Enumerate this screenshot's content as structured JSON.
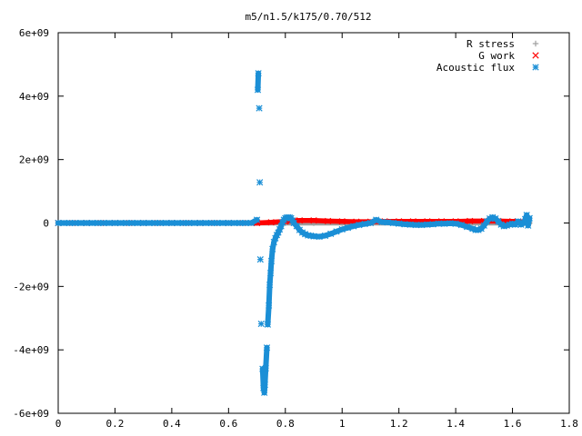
{
  "chart_data": {
    "type": "scatter",
    "title": "m5/n1.5/k175/0.70/512",
    "xlabel": "",
    "ylabel": "",
    "xlim": [
      0,
      1.8
    ],
    "ylim": [
      -6000000000.0,
      6000000000.0
    ],
    "x_ticks": [
      {
        "value": 0,
        "label": "0"
      },
      {
        "value": 0.2,
        "label": "0.2"
      },
      {
        "value": 0.4,
        "label": "0.4"
      },
      {
        "value": 0.6,
        "label": "0.6"
      },
      {
        "value": 0.8,
        "label": "0.8"
      },
      {
        "value": 1.0,
        "label": "1"
      },
      {
        "value": 1.2,
        "label": "1.2"
      },
      {
        "value": 1.4,
        "label": "1.4"
      },
      {
        "value": 1.6,
        "label": "1.6"
      },
      {
        "value": 1.8,
        "label": "1.8"
      }
    ],
    "y_ticks": [
      {
        "value": 6000000000.0,
        "label": "6e+09"
      },
      {
        "value": 4000000000.0,
        "label": "4e+09"
      },
      {
        "value": 2000000000.0,
        "label": "2e+09"
      },
      {
        "value": 0,
        "label": "0"
      },
      {
        "value": -2000000000.0,
        "label": "-2e+09"
      },
      {
        "value": -4000000000.0,
        "label": "-4e+09"
      },
      {
        "value": -6000000000.0,
        "label": "-6e+09"
      }
    ],
    "grid": false,
    "legend_position": "top-right",
    "series": [
      {
        "name": "R stress",
        "marker": "plus",
        "color": "#9e9e9e",
        "points": [
          [
            0.0,
            0
          ],
          [
            0.1,
            0
          ],
          [
            0.2,
            0
          ],
          [
            0.3,
            0
          ],
          [
            0.4,
            0
          ],
          [
            0.5,
            0
          ],
          [
            0.6,
            0
          ],
          [
            0.7,
            0
          ],
          [
            0.8,
            0
          ],
          [
            0.9,
            0
          ],
          [
            1.0,
            0
          ],
          [
            1.1,
            0
          ],
          [
            1.2,
            0
          ],
          [
            1.3,
            0
          ],
          [
            1.4,
            0
          ],
          [
            1.5,
            0
          ],
          [
            1.6,
            0
          ],
          [
            1.66,
            0
          ]
        ]
      },
      {
        "name": "G work",
        "marker": "cross",
        "color": "#ff0000",
        "points": [
          [
            0.0,
            0
          ],
          [
            0.05,
            0
          ],
          [
            0.1,
            0
          ],
          [
            0.15,
            0
          ],
          [
            0.2,
            0
          ],
          [
            0.25,
            0
          ],
          [
            0.3,
            0
          ],
          [
            0.35,
            0
          ],
          [
            0.4,
            0
          ],
          [
            0.45,
            0
          ],
          [
            0.5,
            0
          ],
          [
            0.55,
            0
          ],
          [
            0.6,
            0
          ],
          [
            0.65,
            0
          ],
          [
            0.7,
            0
          ],
          [
            0.75,
            20000000.0
          ],
          [
            0.8,
            50000000.0
          ],
          [
            0.85,
            80000000.0
          ],
          [
            0.9,
            80000000.0
          ],
          [
            0.95,
            60000000.0
          ],
          [
            1.0,
            50000000.0
          ],
          [
            1.05,
            40000000.0
          ],
          [
            1.1,
            40000000.0
          ],
          [
            1.15,
            50000000.0
          ],
          [
            1.2,
            50000000.0
          ],
          [
            1.25,
            50000000.0
          ],
          [
            1.3,
            50000000.0
          ],
          [
            1.35,
            50000000.0
          ],
          [
            1.4,
            50000000.0
          ],
          [
            1.45,
            60000000.0
          ],
          [
            1.5,
            60000000.0
          ],
          [
            1.55,
            60000000.0
          ],
          [
            1.6,
            50000000.0
          ],
          [
            1.65,
            30000000.0
          ]
        ]
      },
      {
        "name": "Acoustic flux",
        "marker": "star",
        "color": "#1b8fd6",
        "points": [
          [
            0.0,
            0
          ],
          [
            0.02,
            0
          ],
          [
            0.04,
            0
          ],
          [
            0.06,
            0
          ],
          [
            0.08,
            0
          ],
          [
            0.1,
            0
          ],
          [
            0.12,
            0
          ],
          [
            0.14,
            0
          ],
          [
            0.16,
            0
          ],
          [
            0.18,
            0
          ],
          [
            0.2,
            0
          ],
          [
            0.22,
            0
          ],
          [
            0.24,
            0
          ],
          [
            0.26,
            0
          ],
          [
            0.28,
            0
          ],
          [
            0.3,
            0
          ],
          [
            0.32,
            0
          ],
          [
            0.34,
            0
          ],
          [
            0.36,
            0
          ],
          [
            0.38,
            0
          ],
          [
            0.4,
            0
          ],
          [
            0.42,
            0
          ],
          [
            0.44,
            0
          ],
          [
            0.46,
            0
          ],
          [
            0.48,
            0
          ],
          [
            0.5,
            0
          ],
          [
            0.52,
            0
          ],
          [
            0.54,
            0
          ],
          [
            0.56,
            0
          ],
          [
            0.58,
            0
          ],
          [
            0.6,
            0
          ],
          [
            0.62,
            0
          ],
          [
            0.64,
            0
          ],
          [
            0.66,
            0
          ],
          [
            0.68,
            0
          ],
          [
            0.7,
            100000000.0
          ],
          [
            0.703,
            4200000000.0
          ],
          [
            0.705,
            4720000000.0
          ],
          [
            0.708,
            3620000000.0
          ],
          [
            0.71,
            1280000000.0
          ],
          [
            0.712,
            -1150000000.0
          ],
          [
            0.715,
            -3180000000.0
          ],
          [
            0.72,
            -4600000000.0
          ],
          [
            0.723,
            -5200000000.0
          ],
          [
            0.726,
            -5350000000.0
          ],
          [
            0.728,
            -5100000000.0
          ],
          [
            0.731,
            -4580000000.0
          ],
          [
            0.735,
            -3930000000.0
          ],
          [
            0.738,
            -3200000000.0
          ],
          [
            0.742,
            -2600000000.0
          ],
          [
            0.745,
            -1950000000.0
          ],
          [
            0.748,
            -1580000000.0
          ],
          [
            0.751,
            -1200000000.0
          ],
          [
            0.755,
            -820000000.0
          ],
          [
            0.76,
            -600000000.0
          ],
          [
            0.765,
            -480000000.0
          ],
          [
            0.77,
            -380000000.0
          ],
          [
            0.775,
            -300000000.0
          ],
          [
            0.78,
            -200000000.0
          ],
          [
            0.785,
            -100000000.0
          ],
          [
            0.79,
            20000000.0
          ],
          [
            0.795,
            100000000.0
          ],
          [
            0.8,
            150000000.0
          ],
          [
            0.805,
            170000000.0
          ],
          [
            0.81,
            180000000.0
          ],
          [
            0.815,
            170000000.0
          ],
          [
            0.82,
            150000000.0
          ],
          [
            0.825,
            80000000.0
          ],
          [
            0.83,
            0.0
          ],
          [
            0.84,
            -100000000.0
          ],
          [
            0.85,
            -220000000.0
          ],
          [
            0.86,
            -300000000.0
          ],
          [
            0.87,
            -350000000.0
          ],
          [
            0.88,
            -390000000.0
          ],
          [
            0.89,
            -400000000.0
          ],
          [
            0.9,
            -420000000.0
          ],
          [
            0.92,
            -430000000.0
          ],
          [
            0.94,
            -400000000.0
          ],
          [
            0.96,
            -340000000.0
          ],
          [
            0.98,
            -270000000.0
          ],
          [
            1.0,
            -200000000.0
          ],
          [
            1.02,
            -150000000.0
          ],
          [
            1.04,
            -100000000.0
          ],
          [
            1.06,
            -60000000.0
          ],
          [
            1.08,
            -30000000.0
          ],
          [
            1.1,
            0.0
          ],
          [
            1.12,
            100000000.0
          ],
          [
            1.14,
            30000000.0
          ],
          [
            1.16,
            20000000.0
          ],
          [
            1.18,
            0.0
          ],
          [
            1.2,
            -20000000.0
          ],
          [
            1.22,
            -40000000.0
          ],
          [
            1.24,
            -50000000.0
          ],
          [
            1.26,
            -60000000.0
          ],
          [
            1.28,
            -60000000.0
          ],
          [
            1.3,
            -50000000.0
          ],
          [
            1.32,
            -40000000.0
          ],
          [
            1.34,
            -20000000.0
          ],
          [
            1.36,
            -20000000.0
          ],
          [
            1.38,
            -10000000.0
          ],
          [
            1.4,
            -20000000.0
          ],
          [
            1.42,
            -60000000.0
          ],
          [
            1.44,
            -120000000.0
          ],
          [
            1.46,
            -180000000.0
          ],
          [
            1.47,
            -220000000.0
          ],
          [
            1.48,
            -220000000.0
          ],
          [
            1.49,
            -180000000.0
          ],
          [
            1.5,
            -80000000.0
          ],
          [
            1.51,
            50000000.0
          ],
          [
            1.52,
            140000000.0
          ],
          [
            1.53,
            180000000.0
          ],
          [
            1.54,
            140000000.0
          ],
          [
            1.55,
            50000000.0
          ],
          [
            1.56,
            -50000000.0
          ],
          [
            1.57,
            -100000000.0
          ],
          [
            1.58,
            -80000000.0
          ],
          [
            1.59,
            -50000000.0
          ],
          [
            1.6,
            -20000000.0
          ],
          [
            1.61,
            -50000000.0
          ],
          [
            1.62,
            50000000.0
          ],
          [
            1.63,
            -50000000.0
          ],
          [
            1.64,
            0.0
          ],
          [
            1.645,
            120000000.0
          ],
          [
            1.65,
            250000000.0
          ],
          [
            1.655,
            -80000000.0
          ],
          [
            1.66,
            150000000.0
          ]
        ]
      }
    ]
  }
}
